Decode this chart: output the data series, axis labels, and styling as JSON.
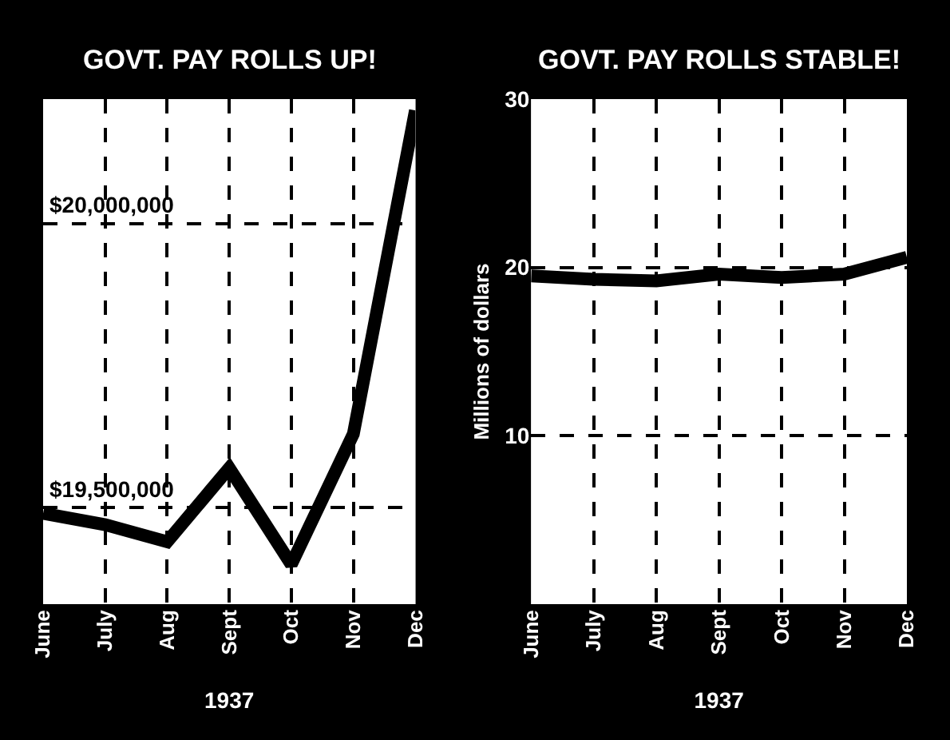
{
  "chart_data": [
    {
      "type": "line",
      "title": "GOVT. PAY ROLLS UP!",
      "xlabel": "1937",
      "categories": [
        "June",
        "July",
        "Aug",
        "Sept",
        "Oct",
        "Nov",
        "Dec"
      ],
      "series": [
        {
          "color": "#000000",
          "values": [
            19490000,
            19470000,
            19440000,
            19570000,
            19400000,
            19630000,
            20200000
          ]
        }
      ],
      "ylim": [
        19330000,
        20220000
      ],
      "yticks": [
        {
          "value": 19500000,
          "label": "$19,500,000"
        },
        {
          "value": 20000000,
          "label": "$20,000,000"
        }
      ],
      "grid": true,
      "line_style": "solid"
    },
    {
      "type": "line",
      "title": "GOVT. PAY ROLLS STABLE!",
      "xlabel": "1937",
      "ylabel": "Millions of dollars",
      "categories": [
        "June",
        "July",
        "Aug",
        "Sept",
        "Oct",
        "Nov",
        "Dec"
      ],
      "series": [
        {
          "color": "#000000",
          "values": [
            19.5,
            19.3,
            19.2,
            19.6,
            19.4,
            19.6,
            20.6
          ]
        }
      ],
      "ylim": [
        0,
        30
      ],
      "yticks": [
        10,
        20,
        30
      ],
      "grid": true,
      "line_style": "solid"
    }
  ]
}
